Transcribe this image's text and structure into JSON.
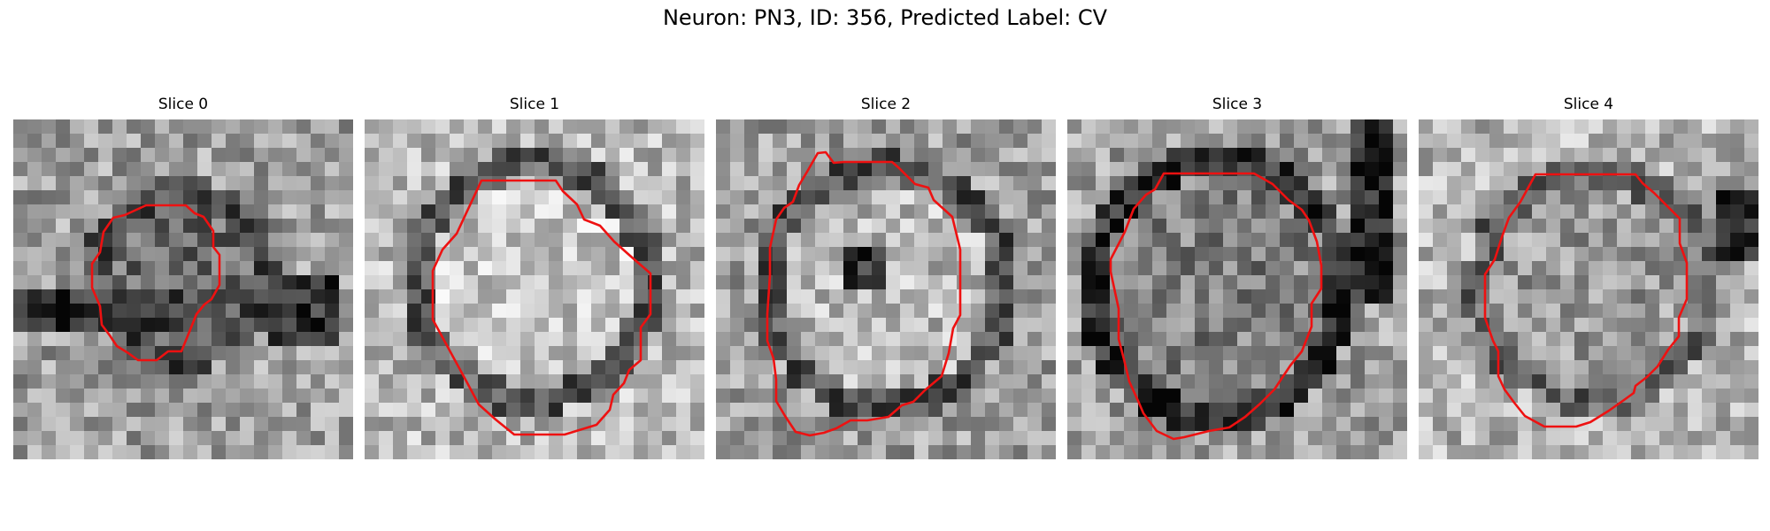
{
  "figure": {
    "title": "Neuron: PN3, ID: 356, Predicted Label: CV"
  },
  "panels": [
    {
      "title": "Slice 0"
    },
    {
      "title": "Slice 1"
    },
    {
      "title": "Slice 2"
    },
    {
      "title": "Slice 3"
    },
    {
      "title": "Slice 4"
    }
  ],
  "contour_color": "#ee1111"
}
